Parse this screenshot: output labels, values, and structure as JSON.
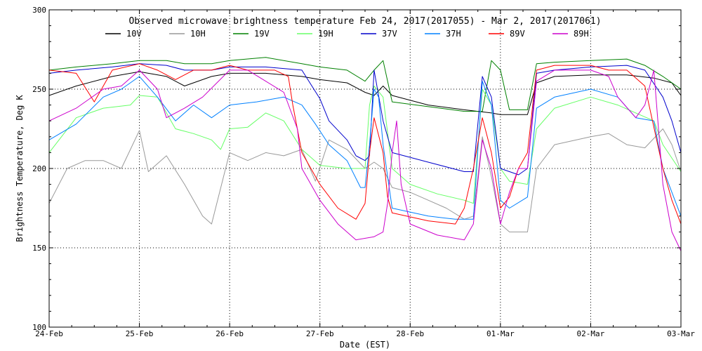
{
  "chart_data": {
    "type": "line",
    "title": "Observed microwave brightness temperature Feb 24, 2017(2017055) - Mar  2, 2017(2017061)",
    "xlabel": "Date (EST)",
    "ylabel": "Brightness Temperature, Deg K",
    "xlim": [
      0,
      7
    ],
    "ylim": [
      100,
      300
    ],
    "yticks": [
      100,
      150,
      200,
      250,
      300
    ],
    "xticks": [
      {
        "x": 0,
        "label": "24-Feb"
      },
      {
        "x": 1,
        "label": "25-Feb"
      },
      {
        "x": 2,
        "label": "26-Feb"
      },
      {
        "x": 3,
        "label": "27-Feb"
      },
      {
        "x": 4,
        "label": "28-Feb"
      },
      {
        "x": 5,
        "label": "01-Mar"
      },
      {
        "x": 6,
        "label": "02-Mar"
      },
      {
        "x": 7,
        "label": "03-Mar"
      }
    ],
    "grid": "dotted",
    "legend_position": "top",
    "x_units": "days since 24-Feb 00:00 EST",
    "series": [
      {
        "name": "10V",
        "color": "#000000",
        "points": [
          [
            0,
            246
          ],
          [
            0.3,
            252
          ],
          [
            0.7,
            258
          ],
          [
            1.0,
            261
          ],
          [
            1.3,
            258
          ],
          [
            1.5,
            252
          ],
          [
            1.8,
            258
          ],
          [
            2.0,
            260
          ],
          [
            2.4,
            260
          ],
          [
            2.8,
            258
          ],
          [
            3.0,
            256
          ],
          [
            3.3,
            254
          ],
          [
            3.5,
            248
          ],
          [
            3.6,
            246
          ],
          [
            3.7,
            252
          ],
          [
            3.8,
            246
          ],
          [
            4.2,
            240
          ],
          [
            4.6,
            237
          ],
          [
            4.9,
            235
          ],
          [
            5.0,
            234
          ],
          [
            5.3,
            234
          ],
          [
            5.4,
            254
          ],
          [
            5.6,
            258
          ],
          [
            6.0,
            259
          ],
          [
            6.4,
            259
          ],
          [
            6.7,
            257
          ],
          [
            6.9,
            254
          ],
          [
            7.0,
            246
          ]
        ]
      },
      {
        "name": "10H",
        "color": "#999999",
        "points": [
          [
            0,
            178
          ],
          [
            0.2,
            200
          ],
          [
            0.4,
            205
          ],
          [
            0.6,
            205
          ],
          [
            0.8,
            200
          ],
          [
            1.0,
            224
          ],
          [
            1.1,
            198
          ],
          [
            1.3,
            208
          ],
          [
            1.5,
            190
          ],
          [
            1.7,
            170
          ],
          [
            1.8,
            165
          ],
          [
            2.0,
            210
          ],
          [
            2.2,
            205
          ],
          [
            2.4,
            210
          ],
          [
            2.6,
            208
          ],
          [
            2.8,
            212
          ],
          [
            2.95,
            192
          ],
          [
            3.1,
            218
          ],
          [
            3.3,
            212
          ],
          [
            3.5,
            200
          ],
          [
            3.6,
            204
          ],
          [
            3.7,
            200
          ],
          [
            3.8,
            188
          ],
          [
            4.0,
            185
          ],
          [
            4.2,
            180
          ],
          [
            4.4,
            175
          ],
          [
            4.6,
            168
          ],
          [
            4.7,
            170
          ],
          [
            4.8,
            220
          ],
          [
            4.9,
            195
          ],
          [
            5.0,
            165
          ],
          [
            5.1,
            160
          ],
          [
            5.3,
            160
          ],
          [
            5.4,
            200
          ],
          [
            5.6,
            215
          ],
          [
            6.0,
            220
          ],
          [
            6.2,
            222
          ],
          [
            6.4,
            215
          ],
          [
            6.6,
            213
          ],
          [
            6.8,
            225
          ],
          [
            6.9,
            215
          ],
          [
            7.0,
            198
          ]
        ]
      },
      {
        "name": "19V",
        "color": "#008000",
        "points": [
          [
            0,
            262
          ],
          [
            0.3,
            264
          ],
          [
            0.7,
            266
          ],
          [
            1.0,
            268
          ],
          [
            1.3,
            268
          ],
          [
            1.5,
            266
          ],
          [
            1.8,
            266
          ],
          [
            2.0,
            268
          ],
          [
            2.4,
            270
          ],
          [
            2.8,
            266
          ],
          [
            3.0,
            264
          ],
          [
            3.3,
            262
          ],
          [
            3.5,
            255
          ],
          [
            3.6,
            262
          ],
          [
            3.7,
            268
          ],
          [
            3.8,
            242
          ],
          [
            4.2,
            239
          ],
          [
            4.6,
            236
          ],
          [
            4.8,
            236
          ],
          [
            4.9,
            268
          ],
          [
            5.0,
            262
          ],
          [
            5.1,
            237
          ],
          [
            5.3,
            237
          ],
          [
            5.4,
            266
          ],
          [
            5.6,
            267
          ],
          [
            6.0,
            268
          ],
          [
            6.4,
            269
          ],
          [
            6.6,
            265
          ],
          [
            6.8,
            258
          ],
          [
            7.0,
            250
          ]
        ]
      },
      {
        "name": "19H",
        "color": "#66ff66",
        "points": [
          [
            0,
            210
          ],
          [
            0.3,
            232
          ],
          [
            0.6,
            238
          ],
          [
            0.9,
            240
          ],
          [
            1.0,
            246
          ],
          [
            1.2,
            245
          ],
          [
            1.4,
            225
          ],
          [
            1.6,
            222
          ],
          [
            1.8,
            218
          ],
          [
            1.9,
            212
          ],
          [
            2.0,
            225
          ],
          [
            2.2,
            226
          ],
          [
            2.4,
            235
          ],
          [
            2.6,
            230
          ],
          [
            2.8,
            212
          ],
          [
            3.0,
            202
          ],
          [
            3.3,
            200
          ],
          [
            3.5,
            200
          ],
          [
            3.55,
            240
          ],
          [
            3.6,
            252
          ],
          [
            3.7,
            245
          ],
          [
            3.8,
            200
          ],
          [
            4.0,
            190
          ],
          [
            4.3,
            184
          ],
          [
            4.6,
            180
          ],
          [
            4.7,
            178
          ],
          [
            4.8,
            250
          ],
          [
            4.9,
            240
          ],
          [
            5.0,
            200
          ],
          [
            5.1,
            192
          ],
          [
            5.3,
            190
          ],
          [
            5.4,
            225
          ],
          [
            5.6,
            238
          ],
          [
            6.0,
            245
          ],
          [
            6.3,
            240
          ],
          [
            6.5,
            235
          ],
          [
            6.7,
            230
          ],
          [
            6.8,
            215
          ],
          [
            7.0,
            198
          ]
        ]
      },
      {
        "name": "37V",
        "color": "#0000cc",
        "points": [
          [
            0,
            260
          ],
          [
            0.3,
            262
          ],
          [
            0.7,
            264
          ],
          [
            1.0,
            266
          ],
          [
            1.3,
            265
          ],
          [
            1.5,
            262
          ],
          [
            1.8,
            262
          ],
          [
            2.0,
            264
          ],
          [
            2.4,
            264
          ],
          [
            2.8,
            262
          ],
          [
            3.0,
            244
          ],
          [
            3.1,
            230
          ],
          [
            3.3,
            218
          ],
          [
            3.4,
            208
          ],
          [
            3.5,
            205
          ],
          [
            3.55,
            208
          ],
          [
            3.6,
            262
          ],
          [
            3.7,
            230
          ],
          [
            3.8,
            210
          ],
          [
            4.2,
            204
          ],
          [
            4.6,
            198
          ],
          [
            4.7,
            198
          ],
          [
            4.8,
            258
          ],
          [
            4.9,
            245
          ],
          [
            5.0,
            200
          ],
          [
            5.2,
            196
          ],
          [
            5.3,
            200
          ],
          [
            5.4,
            260
          ],
          [
            5.6,
            262
          ],
          [
            6.0,
            264
          ],
          [
            6.4,
            265
          ],
          [
            6.6,
            262
          ],
          [
            6.8,
            245
          ],
          [
            6.9,
            230
          ],
          [
            7.0,
            210
          ]
        ]
      },
      {
        "name": "37H",
        "color": "#0080ff",
        "points": [
          [
            0,
            218
          ],
          [
            0.3,
            228
          ],
          [
            0.6,
            245
          ],
          [
            0.8,
            250
          ],
          [
            1.0,
            258
          ],
          [
            1.2,
            245
          ],
          [
            1.4,
            230
          ],
          [
            1.6,
            240
          ],
          [
            1.8,
            232
          ],
          [
            2.0,
            240
          ],
          [
            2.3,
            242
          ],
          [
            2.6,
            245
          ],
          [
            2.8,
            240
          ],
          [
            2.95,
            228
          ],
          [
            3.1,
            215
          ],
          [
            3.3,
            205
          ],
          [
            3.45,
            188
          ],
          [
            3.5,
            188
          ],
          [
            3.55,
            215
          ],
          [
            3.6,
            250
          ],
          [
            3.65,
            245
          ],
          [
            3.7,
            215
          ],
          [
            3.8,
            175
          ],
          [
            4.2,
            170
          ],
          [
            4.5,
            168
          ],
          [
            4.7,
            168
          ],
          [
            4.8,
            255
          ],
          [
            4.9,
            240
          ],
          [
            5.0,
            180
          ],
          [
            5.1,
            175
          ],
          [
            5.3,
            182
          ],
          [
            5.4,
            238
          ],
          [
            5.6,
            245
          ],
          [
            6.0,
            250
          ],
          [
            6.3,
            245
          ],
          [
            6.5,
            232
          ],
          [
            6.7,
            230
          ],
          [
            6.8,
            200
          ],
          [
            6.9,
            185
          ],
          [
            7.0,
            170
          ]
        ]
      },
      {
        "name": "89V",
        "color": "#ff0000",
        "points": [
          [
            0,
            262
          ],
          [
            0.3,
            260
          ],
          [
            0.5,
            242
          ],
          [
            0.7,
            262
          ],
          [
            1.0,
            266
          ],
          [
            1.2,
            262
          ],
          [
            1.4,
            256
          ],
          [
            1.6,
            262
          ],
          [
            1.8,
            262
          ],
          [
            2.0,
            265
          ],
          [
            2.2,
            262
          ],
          [
            2.5,
            262
          ],
          [
            2.65,
            258
          ],
          [
            2.7,
            240
          ],
          [
            2.8,
            210
          ],
          [
            3.0,
            190
          ],
          [
            3.2,
            175
          ],
          [
            3.4,
            168
          ],
          [
            3.5,
            178
          ],
          [
            3.55,
            210
          ],
          [
            3.6,
            232
          ],
          [
            3.7,
            210
          ],
          [
            3.75,
            182
          ],
          [
            3.8,
            172
          ],
          [
            4.2,
            167
          ],
          [
            4.5,
            165
          ],
          [
            4.6,
            175
          ],
          [
            4.7,
            200
          ],
          [
            4.8,
            232
          ],
          [
            4.9,
            210
          ],
          [
            5.0,
            175
          ],
          [
            5.1,
            182
          ],
          [
            5.2,
            200
          ],
          [
            5.3,
            210
          ],
          [
            5.4,
            262
          ],
          [
            5.6,
            265
          ],
          [
            6.0,
            265
          ],
          [
            6.2,
            262
          ],
          [
            6.4,
            262
          ],
          [
            6.6,
            252
          ],
          [
            6.8,
            200
          ],
          [
            6.9,
            180
          ],
          [
            7.0,
            165
          ]
        ]
      },
      {
        "name": "89H",
        "color": "#cc00cc",
        "points": [
          [
            0,
            230
          ],
          [
            0.3,
            238
          ],
          [
            0.6,
            250
          ],
          [
            0.8,
            252
          ],
          [
            1.0,
            262
          ],
          [
            1.2,
            250
          ],
          [
            1.3,
            232
          ],
          [
            1.5,
            238
          ],
          [
            1.7,
            245
          ],
          [
            2.0,
            262
          ],
          [
            2.2,
            262
          ],
          [
            2.4,
            255
          ],
          [
            2.6,
            248
          ],
          [
            2.75,
            225
          ],
          [
            2.8,
            200
          ],
          [
            2.9,
            190
          ],
          [
            3.0,
            180
          ],
          [
            3.2,
            165
          ],
          [
            3.4,
            155
          ],
          [
            3.6,
            157
          ],
          [
            3.7,
            160
          ],
          [
            3.75,
            178
          ],
          [
            3.8,
            210
          ],
          [
            3.85,
            230
          ],
          [
            3.9,
            190
          ],
          [
            4.0,
            165
          ],
          [
            4.3,
            158
          ],
          [
            4.6,
            155
          ],
          [
            4.7,
            165
          ],
          [
            4.8,
            218
          ],
          [
            4.9,
            200
          ],
          [
            5.0,
            165
          ],
          [
            5.1,
            185
          ],
          [
            5.2,
            200
          ],
          [
            5.3,
            200
          ],
          [
            5.4,
            255
          ],
          [
            5.6,
            262
          ],
          [
            6.0,
            262
          ],
          [
            6.2,
            258
          ],
          [
            6.3,
            245
          ],
          [
            6.5,
            232
          ],
          [
            6.6,
            240
          ],
          [
            6.7,
            262
          ],
          [
            6.8,
            190
          ],
          [
            6.9,
            160
          ],
          [
            7.0,
            148
          ]
        ]
      }
    ]
  }
}
